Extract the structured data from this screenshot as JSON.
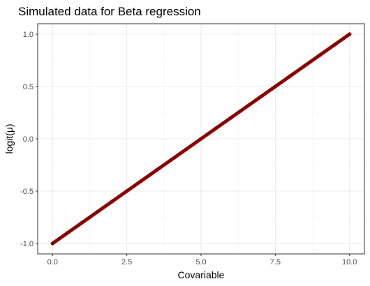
{
  "chart_data": {
    "type": "scatter",
    "title": "Simulated data for Beta regression",
    "xlabel": "Covariable",
    "ylabel": "logit(μ)",
    "xlim": [
      -0.5,
      10.5
    ],
    "ylim": [
      -1.1,
      1.1
    ],
    "grid": true,
    "legend": "none",
    "x_ticks": [
      0,
      2.5,
      5,
      7.5,
      10
    ],
    "x_tick_labels": [
      "0.0",
      "2.5",
      "5.0",
      "7.5",
      "10.0"
    ],
    "y_ticks": [
      -1,
      -0.5,
      0,
      0.5,
      1
    ],
    "y_tick_labels": [
      "-1.0",
      "-0.5",
      "0.0",
      "0.5",
      "1.0"
    ],
    "series": [
      {
        "color": "#8b0000",
        "points": [
          [
            0.0,
            -1.0
          ],
          [
            0.5,
            -0.9
          ],
          [
            1.0,
            -0.8
          ],
          [
            1.5,
            -0.7
          ],
          [
            2.0,
            -0.6
          ],
          [
            2.5,
            -0.5
          ],
          [
            3.0,
            -0.4
          ],
          [
            3.5,
            -0.3
          ],
          [
            4.0,
            -0.2
          ],
          [
            4.5,
            -0.1
          ],
          [
            5.0,
            0.0
          ],
          [
            5.5,
            0.1
          ],
          [
            6.0,
            0.2
          ],
          [
            6.5,
            0.3
          ],
          [
            7.0,
            0.4
          ],
          [
            7.5,
            0.5
          ],
          [
            8.0,
            0.6
          ],
          [
            8.5,
            0.7
          ],
          [
            9.0,
            0.8
          ],
          [
            9.5,
            0.9
          ],
          [
            10.0,
            1.0
          ]
        ]
      }
    ]
  },
  "colors": {
    "panel_border": "#333333",
    "grid_major": "#ebebeb",
    "grid_minor": "#f5f5f5",
    "point": "#8b0000"
  }
}
